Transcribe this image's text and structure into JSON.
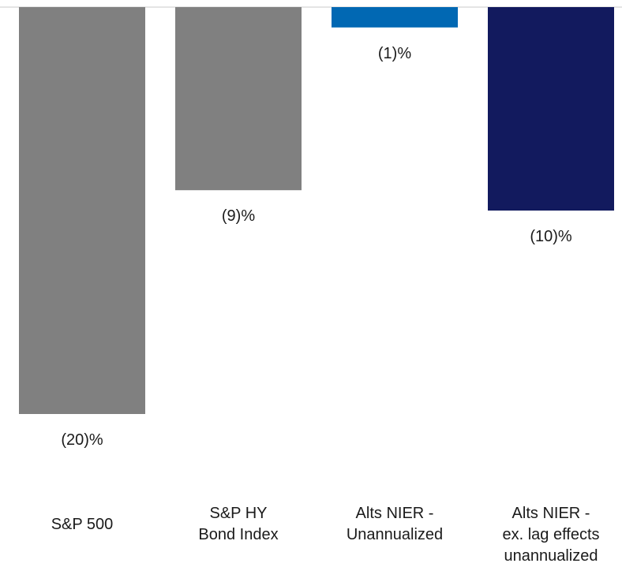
{
  "chart_data": {
    "type": "bar",
    "categories": [
      [
        "S&P 500"
      ],
      [
        "S&P HY",
        "Bond Index"
      ],
      [
        "Alts NIER -",
        "Unannualized"
      ],
      [
        "Alts NIER -",
        "ex. lag effects",
        "unannualized"
      ]
    ],
    "values": [
      -20,
      -9,
      -1,
      -10
    ],
    "data_labels": [
      "(20)%",
      "(9)%",
      "(1)%",
      "(10)%"
    ],
    "colors": [
      "#808080",
      "#808080",
      "#0168b3",
      "#121a5e"
    ],
    "ylim": [
      -20,
      0
    ],
    "grid": false,
    "legend": "none"
  }
}
